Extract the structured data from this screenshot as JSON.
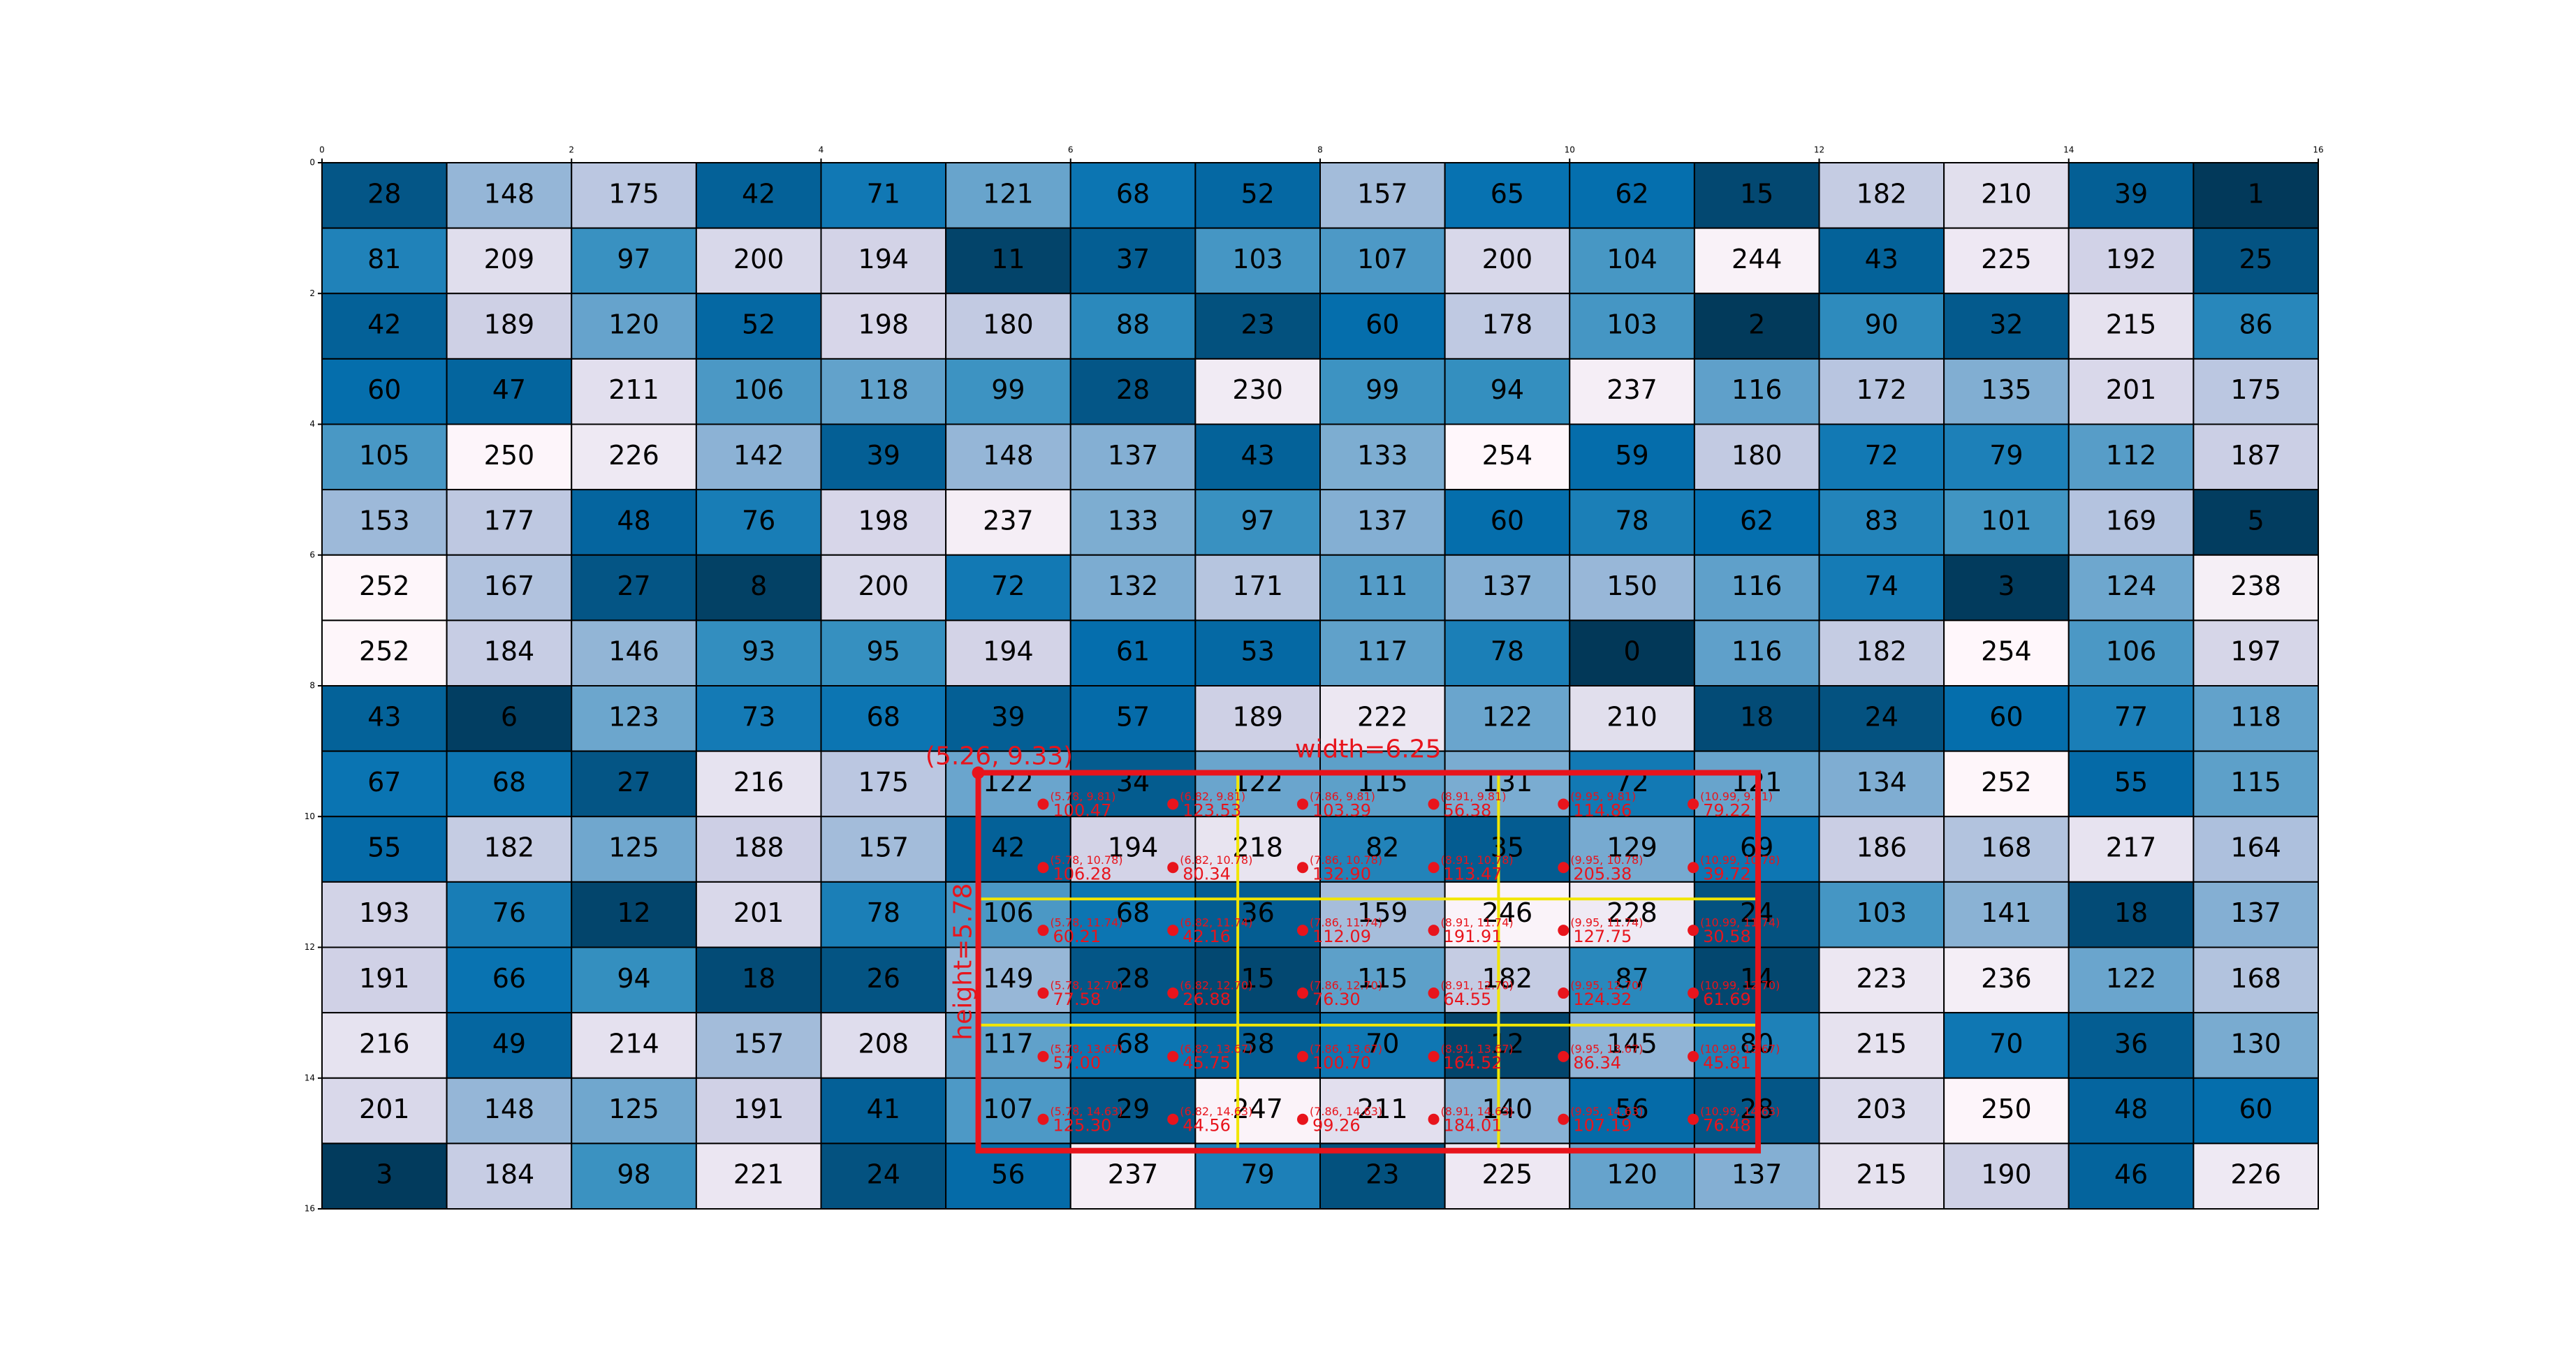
{
  "chart_data": {
    "type": "heatmap",
    "xlim": [
      0,
      16
    ],
    "ylim": [
      16,
      0
    ],
    "xticks": [
      0,
      2,
      4,
      6,
      8,
      10,
      12,
      14,
      16
    ],
    "yticks": [
      0,
      2,
      4,
      6,
      8,
      10,
      12,
      14,
      16
    ],
    "colormap": [
      "#023858",
      "#045a8d",
      "#0570b0",
      "#3690c0",
      "#74a9cf",
      "#a6bddb",
      "#d0d1e6",
      "#ece7f2",
      "#fff7fb"
    ],
    "values": [
      [
        28,
        148,
        175,
        42,
        71,
        121,
        68,
        52,
        157,
        65,
        62,
        15,
        182,
        210,
        39,
        1
      ],
      [
        81,
        209,
        97,
        200,
        194,
        11,
        37,
        103,
        107,
        200,
        104,
        244,
        43,
        225,
        192,
        25
      ],
      [
        42,
        189,
        120,
        52,
        198,
        180,
        88,
        23,
        60,
        178,
        103,
        2,
        90,
        32,
        215,
        86
      ],
      [
        60,
        47,
        211,
        106,
        118,
        99,
        28,
        230,
        99,
        94,
        237,
        116,
        172,
        135,
        201,
        175
      ],
      [
        105,
        250,
        226,
        142,
        39,
        148,
        137,
        43,
        133,
        254,
        59,
        180,
        72,
        79,
        112,
        187
      ],
      [
        153,
        177,
        48,
        76,
        198,
        237,
        133,
        97,
        137,
        60,
        78,
        62,
        83,
        101,
        169,
        5
      ],
      [
        252,
        167,
        27,
        8,
        200,
        72,
        132,
        171,
        111,
        137,
        150,
        116,
        74,
        3,
        124,
        238
      ],
      [
        252,
        184,
        146,
        93,
        95,
        194,
        61,
        53,
        117,
        78,
        0,
        116,
        182,
        254,
        106,
        197
      ],
      [
        43,
        6,
        123,
        73,
        68,
        39,
        57,
        189,
        222,
        122,
        210,
        18,
        24,
        60,
        77,
        118
      ],
      [
        67,
        68,
        27,
        216,
        175,
        122,
        34,
        122,
        115,
        131,
        72,
        121,
        134,
        252,
        55,
        115
      ],
      [
        55,
        182,
        125,
        188,
        157,
        42,
        194,
        218,
        82,
        35,
        129,
        69,
        186,
        168,
        217,
        164
      ],
      [
        193,
        76,
        12,
        201,
        78,
        106,
        68,
        36,
        159,
        246,
        228,
        24,
        103,
        141,
        18,
        137
      ],
      [
        191,
        66,
        94,
        18,
        26,
        149,
        28,
        15,
        115,
        182,
        87,
        14,
        223,
        236,
        122,
        168
      ],
      [
        216,
        49,
        214,
        157,
        208,
        117,
        68,
        38,
        70,
        12,
        145,
        80,
        215,
        70,
        36,
        130
      ],
      [
        201,
        148,
        125,
        191,
        41,
        107,
        29,
        247,
        211,
        140,
        56,
        28,
        203,
        250,
        48,
        60
      ],
      [
        3,
        184,
        98,
        221,
        24,
        56,
        237,
        79,
        23,
        225,
        120,
        137,
        215,
        190,
        46,
        226
      ]
    ],
    "region": {
      "x": 5.26,
      "y": 9.33,
      "width": 6.25,
      "height": 5.78,
      "color": "#e8141c",
      "corner_label": "(5.26, 9.33)",
      "width_label": "width=6.25",
      "height_label": "height=5.78"
    },
    "divider_color": "#f2e600",
    "dividers_x": [
      7.34,
      9.43
    ],
    "dividers_y": [
      11.26,
      13.19
    ],
    "points": [
      {
        "x": 5.78,
        "y": 9.81,
        "label": "(5.78, 9.81)",
        "value_label": "100.47"
      },
      {
        "x": 6.82,
        "y": 9.81,
        "label": "(6.82, 9.81)",
        "value_label": "123.53"
      },
      {
        "x": 7.86,
        "y": 9.81,
        "label": "(7.86, 9.81)",
        "value_label": "103.39"
      },
      {
        "x": 8.91,
        "y": 9.81,
        "label": "(8.91, 9.81)",
        "value_label": "56.38"
      },
      {
        "x": 9.95,
        "y": 9.81,
        "label": "(9.95, 9.81)",
        "value_label": "114.86"
      },
      {
        "x": 10.99,
        "y": 9.81,
        "label": "(10.99, 9.81)",
        "value_label": "79.22"
      },
      {
        "x": 5.78,
        "y": 10.78,
        "label": "(5.78, 10.78)",
        "value_label": "106.28"
      },
      {
        "x": 6.82,
        "y": 10.78,
        "label": "(6.82, 10.78)",
        "value_label": "80.34"
      },
      {
        "x": 7.86,
        "y": 10.78,
        "label": "(7.86, 10.78)",
        "value_label": "132.90"
      },
      {
        "x": 8.91,
        "y": 10.78,
        "label": "(8.91, 10.78)",
        "value_label": "113.47"
      },
      {
        "x": 9.95,
        "y": 10.78,
        "label": "(9.95, 10.78)",
        "value_label": "205.38"
      },
      {
        "x": 10.99,
        "y": 10.78,
        "label": "(10.99, 10.78)",
        "value_label": "39.72"
      },
      {
        "x": 5.78,
        "y": 11.74,
        "label": "(5.78, 11.74)",
        "value_label": "60.21"
      },
      {
        "x": 6.82,
        "y": 11.74,
        "label": "(6.82, 11.74)",
        "value_label": "42.16"
      },
      {
        "x": 7.86,
        "y": 11.74,
        "label": "(7.86, 11.74)",
        "value_label": "112.09"
      },
      {
        "x": 8.91,
        "y": 11.74,
        "label": "(8.91, 11.74)",
        "value_label": "191.91"
      },
      {
        "x": 9.95,
        "y": 11.74,
        "label": "(9.95, 11.74)",
        "value_label": "127.75"
      },
      {
        "x": 10.99,
        "y": 11.74,
        "label": "(10.99, 11.74)",
        "value_label": "30.58"
      },
      {
        "x": 5.78,
        "y": 12.7,
        "label": "(5.78, 12.70)",
        "value_label": "77.58"
      },
      {
        "x": 6.82,
        "y": 12.7,
        "label": "(6.82, 12.70)",
        "value_label": "26.88"
      },
      {
        "x": 7.86,
        "y": 12.7,
        "label": "(7.86, 12.70)",
        "value_label": "76.30"
      },
      {
        "x": 8.91,
        "y": 12.7,
        "label": "(8.91, 12.70)",
        "value_label": "64.55"
      },
      {
        "x": 9.95,
        "y": 12.7,
        "label": "(9.95, 12.70)",
        "value_label": "124.32"
      },
      {
        "x": 10.99,
        "y": 12.7,
        "label": "(10.99, 12.70)",
        "value_label": "61.69"
      },
      {
        "x": 5.78,
        "y": 13.67,
        "label": "(5.78, 13.67)",
        "value_label": "57.00"
      },
      {
        "x": 6.82,
        "y": 13.67,
        "label": "(6.82, 13.67)",
        "value_label": "45.75"
      },
      {
        "x": 7.86,
        "y": 13.67,
        "label": "(7.86, 13.67)",
        "value_label": "100.70"
      },
      {
        "x": 8.91,
        "y": 13.67,
        "label": "(8.91, 13.67)",
        "value_label": "164.52"
      },
      {
        "x": 9.95,
        "y": 13.67,
        "label": "(9.95, 13.67)",
        "value_label": "86.34"
      },
      {
        "x": 10.99,
        "y": 13.67,
        "label": "(10.99, 13.67)",
        "value_label": "45.81"
      },
      {
        "x": 5.78,
        "y": 14.63,
        "label": "(5.78, 14.63)",
        "value_label": "125.30"
      },
      {
        "x": 6.82,
        "y": 14.63,
        "label": "(6.82, 14.63)",
        "value_label": "44.56"
      },
      {
        "x": 7.86,
        "y": 14.63,
        "label": "(7.86, 14.63)",
        "value_label": "99.26"
      },
      {
        "x": 8.91,
        "y": 14.63,
        "label": "(8.91, 14.63)",
        "value_label": "184.01"
      },
      {
        "x": 9.95,
        "y": 14.63,
        "label": "(9.95, 14.63)",
        "value_label": "107.19"
      },
      {
        "x": 10.99,
        "y": 14.63,
        "label": "(10.99, 14.63)",
        "value_label": "76.48"
      }
    ]
  }
}
